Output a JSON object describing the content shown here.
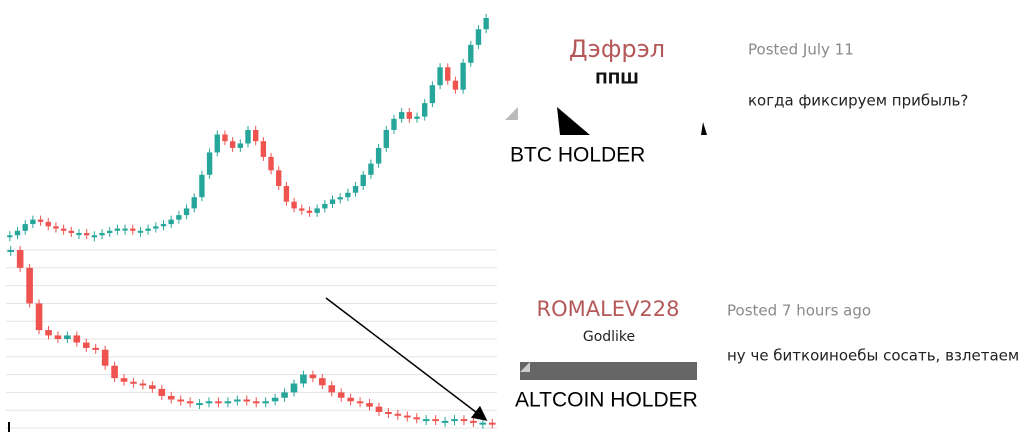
{
  "chart_data": [
    {
      "type": "candlestick",
      "up_color": "#26a69a",
      "down_color": "#ef5350",
      "ylim": [
        0,
        100
      ],
      "grid": false,
      "values": [
        3,
        5,
        8,
        10,
        9,
        7,
        6,
        5,
        4,
        4,
        3,
        3,
        4,
        5,
        6,
        6,
        5,
        5,
        6,
        7,
        8,
        10,
        12,
        15,
        20,
        30,
        40,
        48,
        45,
        42,
        44,
        50,
        45,
        38,
        32,
        25,
        18,
        15,
        14,
        13,
        15,
        17,
        19,
        20,
        22,
        25,
        30,
        35,
        42,
        50,
        55,
        58,
        55,
        56,
        62,
        70,
        78,
        72,
        68,
        80,
        88,
        95,
        100
      ]
    },
    {
      "type": "candlestick",
      "up_color": "#26a69a",
      "down_color": "#ef5350",
      "ylim": [
        0,
        100
      ],
      "grid": true,
      "yticks": [
        0,
        10,
        20,
        30,
        40,
        50,
        60,
        70,
        80,
        90,
        100
      ],
      "values": [
        100,
        90,
        70,
        55,
        52,
        50,
        52,
        48,
        45,
        44,
        35,
        28,
        26,
        25,
        24,
        22,
        18,
        16,
        15,
        14,
        14,
        15,
        14,
        15,
        16,
        15,
        14,
        15,
        17,
        20,
        25,
        30,
        28,
        24,
        20,
        17,
        15,
        14,
        12,
        9,
        8,
        7,
        6,
        5,
        5,
        4,
        4,
        5,
        4,
        3,
        3,
        2
      ]
    }
  ],
  "posts": [
    {
      "author": "Дэфрэл",
      "rank": "ППШ",
      "date": "Posted July 11",
      "text": "когда фиксируем прибыль?",
      "caption": "BTC HOLDER"
    },
    {
      "author": "ROMALEV228",
      "rank": "Godlike",
      "date": "Posted 7 hours ago",
      "text": "ну че биткоиноебы сосать, взлетаем",
      "caption": "ALTCOIN HOLDER"
    }
  ]
}
